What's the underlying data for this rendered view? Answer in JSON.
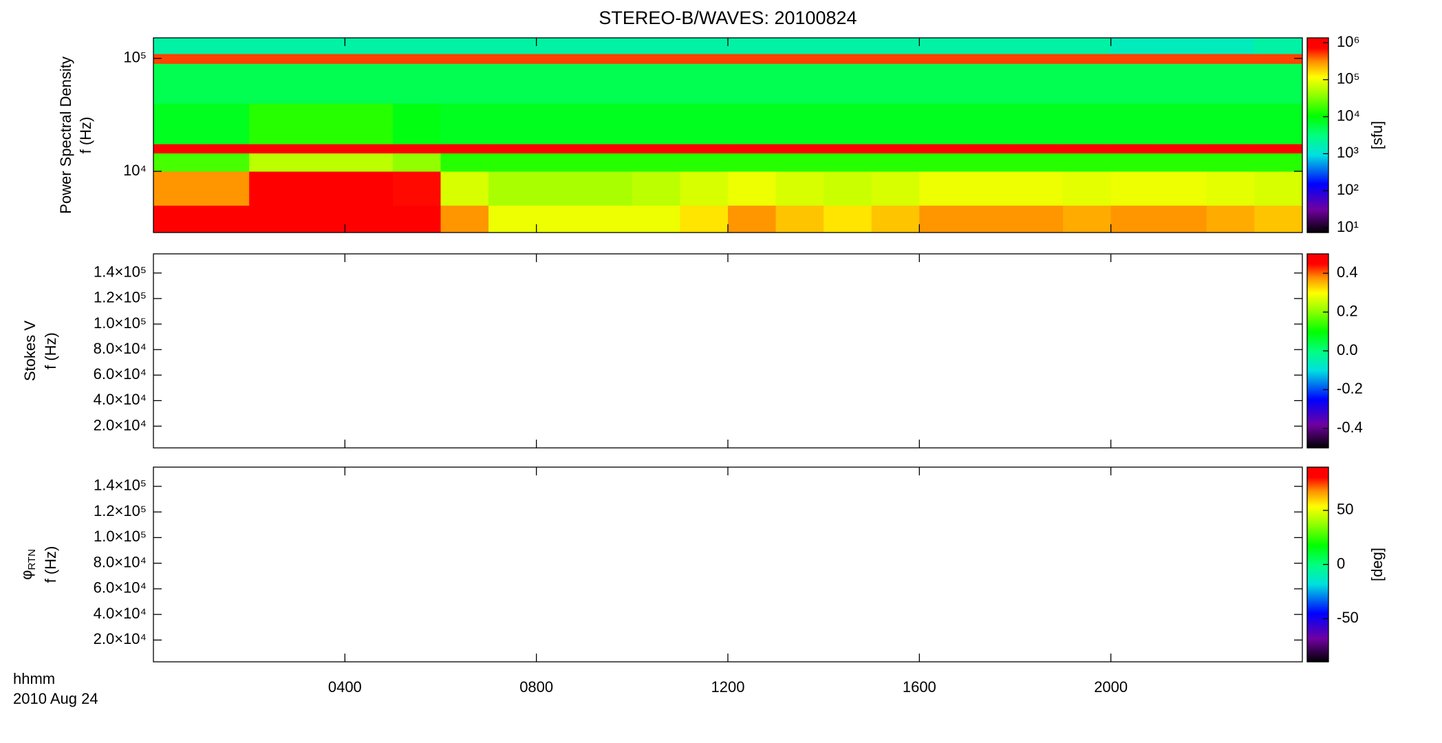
{
  "figure": {
    "title": "STEREO-B/WAVES: 20100824",
    "time_label": "hhmm",
    "date_label": "2010 Aug 24",
    "xlim": [
      0,
      24
    ],
    "xticks": [
      {
        "value": 4,
        "label": "0400"
      },
      {
        "value": 8,
        "label": "0800"
      },
      {
        "value": 12,
        "label": "1200"
      },
      {
        "value": 16,
        "label": "1600"
      },
      {
        "value": 20,
        "label": "2000"
      }
    ]
  },
  "chart_data": [
    {
      "type": "heatmap",
      "ylabel": [
        "Power Spectral Density",
        "f (Hz)"
      ],
      "ylog": true,
      "ylim": [
        2870,
        152000
      ],
      "yticks": [
        {
          "value": 10000,
          "label": "10⁴"
        },
        {
          "value": 100000,
          "label": "10⁵"
        }
      ],
      "clog": true,
      "clim": [
        7.4,
        1350000
      ],
      "clabel": "[sfu]",
      "cticks": [
        {
          "value": 10,
          "label": "10¹"
        },
        {
          "value": 100,
          "label": "10²"
        },
        {
          "value": 1000,
          "label": "10³"
        },
        {
          "value": 10000,
          "label": "10⁴"
        },
        {
          "value": 100000,
          "label": "10⁵"
        },
        {
          "value": 1000000,
          "label": "10⁶"
        }
      ],
      "time_bins": [
        0,
        1,
        2,
        3,
        4,
        5,
        6,
        7,
        8,
        9,
        10,
        11,
        12,
        13,
        14,
        15,
        16,
        17,
        18,
        19,
        20,
        21,
        22,
        23,
        24
      ],
      "freq_bins": [
        2870,
        5000,
        10000,
        14500,
        17500,
        40000,
        90000,
        110000,
        152000
      ],
      "z": [
        [
          1000000,
          1000000,
          1000000,
          1000000,
          1000000,
          1000000,
          300000,
          100000,
          100000,
          100000,
          100000,
          150000,
          300000,
          200000,
          150000,
          200000,
          300000,
          300000,
          300000,
          250000,
          300000,
          300000,
          250000,
          200000
        ],
        [
          300000,
          300000,
          1000000,
          1000000,
          1000000,
          700000,
          80000,
          50000,
          50000,
          50000,
          60000,
          80000,
          100000,
          80000,
          70000,
          80000,
          100000,
          100000,
          100000,
          90000,
          100000,
          100000,
          90000,
          80000
        ],
        [
          20000,
          20000,
          60000,
          60000,
          60000,
          40000,
          15000,
          15000,
          15000,
          15000,
          15000,
          15000,
          15000,
          15000,
          15000,
          15000,
          15000,
          15000,
          15000,
          15000,
          15000,
          15000,
          15000,
          15000
        ],
        [
          1000000,
          1000000,
          1000000,
          1000000,
          1000000,
          1000000,
          1000000,
          1000000,
          1000000,
          1000000,
          1000000,
          1000000,
          1000000,
          1000000,
          1000000,
          1000000,
          1000000,
          1000000,
          1000000,
          1000000,
          1000000,
          1000000,
          1000000,
          1000000
        ],
        [
          8000,
          8000,
          15000,
          15000,
          15000,
          9000,
          8000,
          8000,
          8000,
          8000,
          8000,
          8000,
          8000,
          8000,
          8000,
          8000,
          8000,
          8000,
          8000,
          8000,
          8000,
          8000,
          8000,
          8000
        ],
        [
          5000,
          5000,
          5000,
          5000,
          5000,
          5000,
          5000,
          5000,
          5000,
          5000,
          5000,
          5000,
          5000,
          5000,
          5000,
          5000,
          5000,
          5000,
          5000,
          5000,
          5000,
          5000,
          5000,
          5000
        ],
        [
          500000,
          500000,
          500000,
          500000,
          500000,
          500000,
          500000,
          500000,
          500000,
          500000,
          500000,
          500000,
          500000,
          500000,
          500000,
          500000,
          500000,
          500000,
          500000,
          500000,
          500000,
          500000,
          500000,
          500000
        ],
        [
          2000,
          2000,
          2000,
          2000,
          2000,
          2000,
          2000,
          2000,
          2000,
          2000,
          2000,
          2000,
          2000,
          2000,
          2000,
          2000,
          2000,
          2000,
          2000,
          2000,
          1500,
          1500,
          1500,
          2000
        ]
      ]
    },
    {
      "type": "heatmap",
      "ylabel": [
        "Stokes V",
        "f (Hz)"
      ],
      "ylog": false,
      "ylim": [
        3000,
        155000
      ],
      "yticks": [
        {
          "value": 20000,
          "label": "2.0×10⁴"
        },
        {
          "value": 40000,
          "label": "4.0×10⁴"
        },
        {
          "value": 60000,
          "label": "6.0×10⁴"
        },
        {
          "value": 80000,
          "label": "8.0×10⁴"
        },
        {
          "value": 100000,
          "label": "1.0×10⁵"
        },
        {
          "value": 120000,
          "label": "1.2×10⁵"
        },
        {
          "value": 140000,
          "label": "1.4×10⁵"
        }
      ],
      "clog": false,
      "clim": [
        -0.5,
        0.5
      ],
      "cticks": [
        -0.4,
        -0.2,
        {
          "value": 0,
          "label": "0.0"
        },
        0.2,
        0.4
      ]
    },
    {
      "type": "heatmap",
      "ylabel_symbol": "φ",
      "ylabel_subscript": "RTN",
      "ylabel": [
        "f (Hz)"
      ],
      "ylog": false,
      "ylim": [
        3000,
        155000
      ],
      "yticks": [
        {
          "value": 20000,
          "label": "2.0×10⁴"
        },
        {
          "value": 40000,
          "label": "4.0×10⁴"
        },
        {
          "value": 60000,
          "label": "6.0×10⁴"
        },
        {
          "value": 80000,
          "label": "8.0×10⁴"
        },
        {
          "value": 100000,
          "label": "1.0×10⁵"
        },
        {
          "value": 120000,
          "label": "1.2×10⁵"
        },
        {
          "value": 140000,
          "label": "1.4×10⁵"
        }
      ],
      "clog": false,
      "clim": [
        -90,
        90
      ],
      "clabel": "[deg]",
      "cticks": [
        -50,
        0,
        50
      ]
    }
  ]
}
